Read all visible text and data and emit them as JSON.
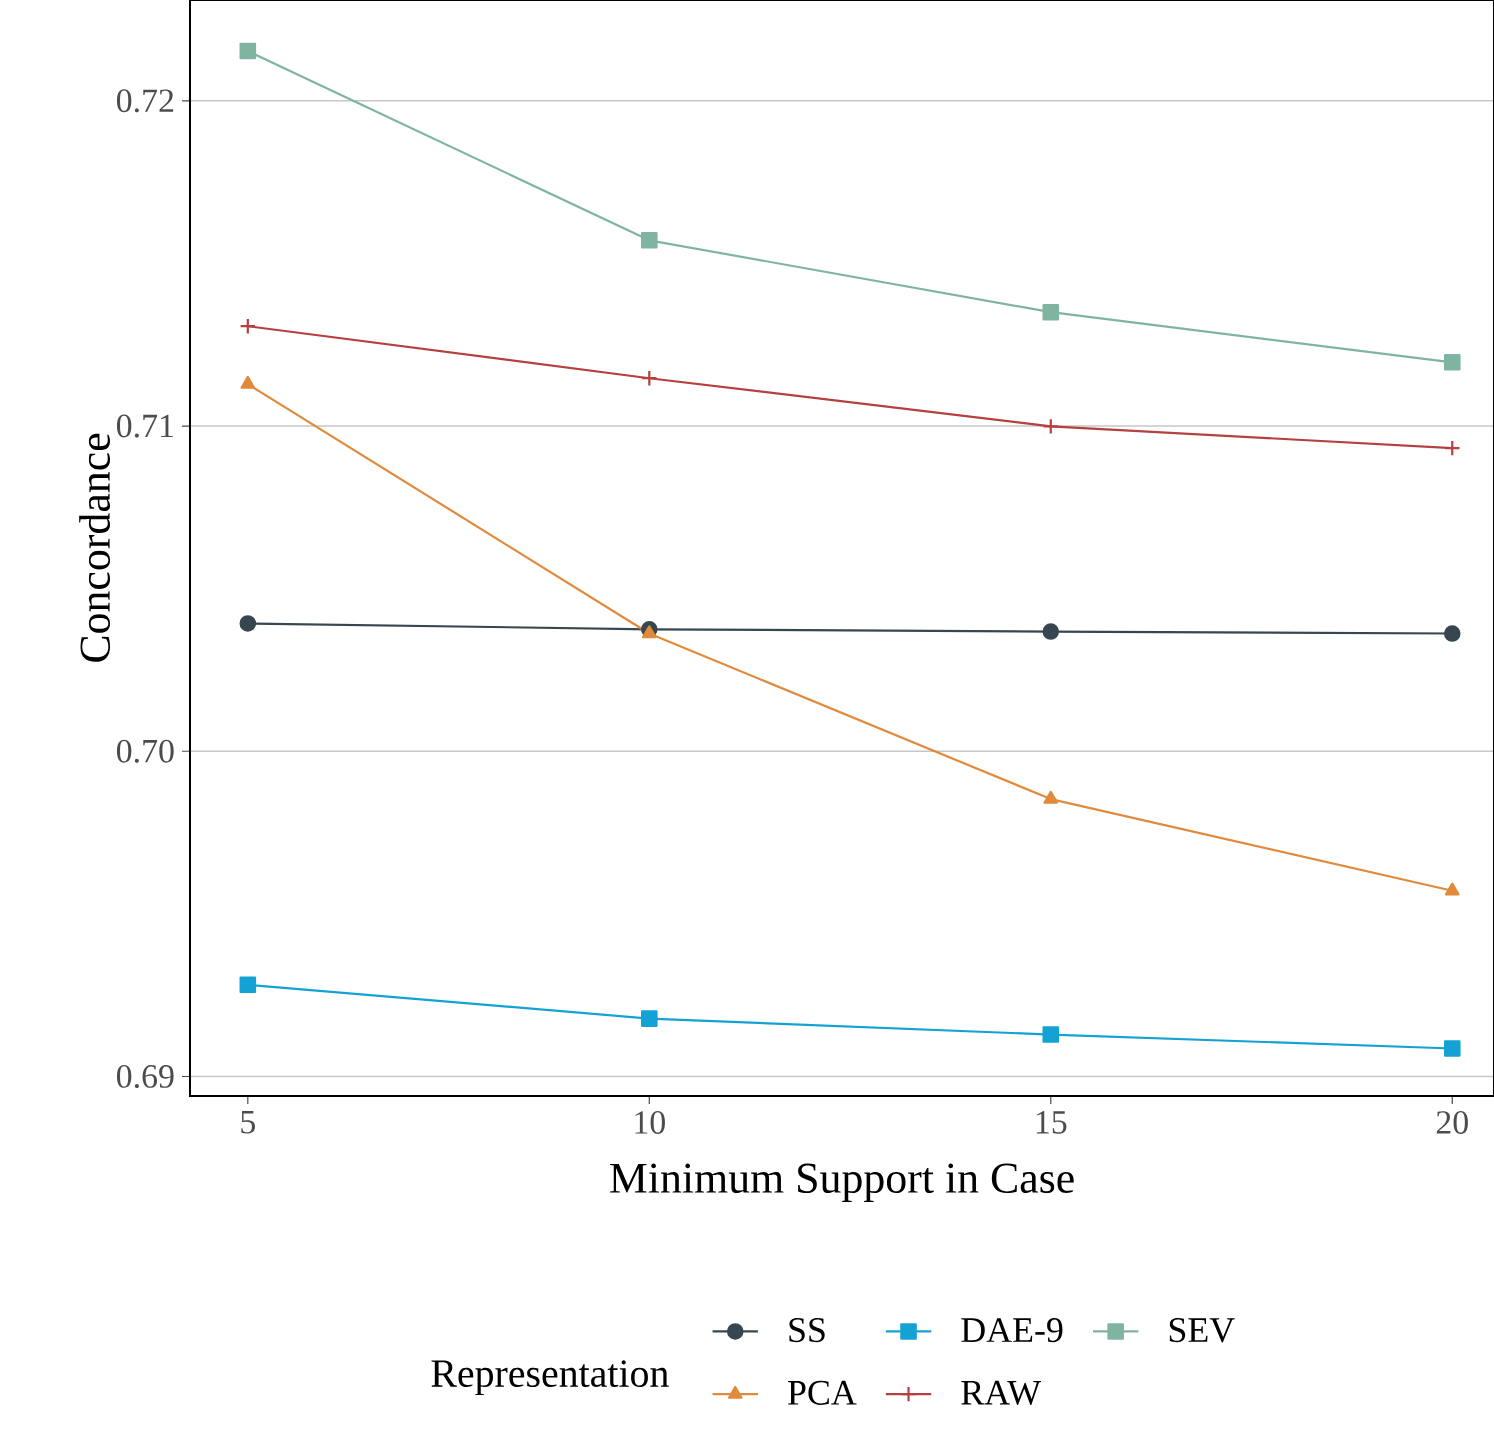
{
  "chart_data": {
    "type": "line",
    "xlabel": "Minimum Support in Case",
    "ylabel": "Concordance",
    "legend_title": "Representation",
    "x": [
      5,
      10,
      15,
      20
    ],
    "series": [
      {
        "name": "SS",
        "color": "#36474f",
        "marker": "circle",
        "values": [
          0.70393,
          0.70375,
          0.70368,
          0.70362
        ]
      },
      {
        "name": "DAE-9",
        "color": "#14a2d4",
        "marker": "square",
        "values": [
          0.69282,
          0.69178,
          0.69129,
          0.69086
        ]
      },
      {
        "name": "SEV",
        "color": "#7fb5a0",
        "marker": "square",
        "values": [
          0.72153,
          0.71571,
          0.7135,
          0.71196
        ]
      },
      {
        "name": "PCA",
        "color": "#e08a3c",
        "marker": "triangle",
        "values": [
          0.71129,
          0.70362,
          0.69853,
          0.69571
        ]
      },
      {
        "name": "RAW",
        "color": "#b5403f",
        "marker": "cross",
        "values": [
          0.71307,
          0.71147,
          0.70999,
          0.70932
        ]
      }
    ],
    "xlim": [
      4.28,
      20.52
    ],
    "ylim": [
      0.6894,
      0.7231
    ],
    "xticks": [
      5,
      10,
      15,
      20
    ],
    "yticks": [
      {
        "value": 0.69,
        "label": "0.69"
      },
      {
        "value": 0.7,
        "label": "0.70"
      },
      {
        "value": 0.71,
        "label": "0.71"
      },
      {
        "value": 0.72,
        "label": "0.72"
      }
    ],
    "grid": "y",
    "legend": "bottom",
    "line_style": "solid"
  }
}
